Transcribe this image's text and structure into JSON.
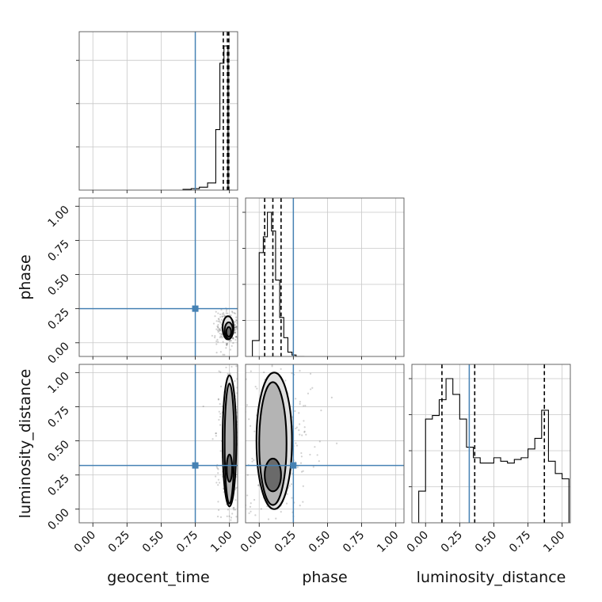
{
  "chart_data": {
    "type": "corner",
    "parameters": [
      "geocent_time",
      "phase",
      "luminosity_distance"
    ],
    "axis_range": [
      -0.1,
      1.06
    ],
    "tick_values": [
      0.0,
      0.25,
      0.5,
      0.75,
      1.0
    ],
    "tick_labels": [
      "0.00",
      "0.25",
      "0.50",
      "0.75",
      "1.00"
    ],
    "grid": true,
    "truths": {
      "geocent_time": 0.75,
      "phase": 0.25,
      "luminosity_distance": 0.32
    },
    "colors": {
      "truth": "#4682b4",
      "hist": "#000000",
      "grid": "#c8c8c8",
      "contour_fill": "#c0c0c0"
    },
    "histograms": [
      {
        "param": "geocent_time",
        "bin_edges": [
          0.66,
          0.72,
          0.78,
          0.84,
          0.9,
          0.93,
          0.96,
          0.99,
          1.02
        ],
        "counts": [
          0.5,
          1,
          2,
          5,
          42,
          88,
          100,
          0
        ],
        "quantiles": [
          0.955,
          0.985,
          0.995
        ]
      },
      {
        "param": "phase",
        "bin_edges": [
          -0.05,
          0.0,
          0.03,
          0.06,
          0.09,
          0.12,
          0.15,
          0.18,
          0.21,
          0.24,
          0.27,
          0.3,
          0.33
        ],
        "counts": [
          11,
          72,
          83,
          100,
          87,
          53,
          27,
          13,
          3,
          1,
          0,
          0
        ],
        "quantiles": [
          0.04,
          0.1,
          0.16
        ]
      },
      {
        "param": "luminosity_distance",
        "bin_edges": [
          -0.05,
          0.0,
          0.05,
          0.1,
          0.15,
          0.2,
          0.25,
          0.3,
          0.35,
          0.4,
          0.45,
          0.5,
          0.55,
          0.6,
          0.65,
          0.7,
          0.75,
          0.8,
          0.85,
          0.9,
          0.95,
          1.0,
          1.05
        ],
        "counts": [
          18,
          59,
          61,
          70,
          82,
          73,
          59,
          43,
          37,
          34,
          34,
          37,
          35,
          34,
          36,
          37,
          42,
          48,
          64,
          35,
          28,
          25
        ],
        "quantiles": [
          0.12,
          0.36,
          0.87
        ]
      }
    ],
    "scatter_panels": [
      {
        "x": "geocent_time",
        "y": "phase",
        "contours": [
          {
            "level": "outer",
            "center": [
              0.99,
              0.11
            ],
            "radii": [
              0.04,
              0.085
            ]
          },
          {
            "level": "mid",
            "center": [
              0.995,
              0.09
            ],
            "radii": [
              0.03,
              0.06
            ]
          },
          {
            "level": "inner",
            "center": [
              0.995,
              0.08
            ],
            "radii": [
              0.018,
              0.035
            ]
          }
        ]
      },
      {
        "x": "geocent_time",
        "y": "luminosity_distance",
        "contours": [
          {
            "level": "outer",
            "center": [
              1.0,
              0.5
            ],
            "radii": [
              0.05,
              0.48
            ]
          },
          {
            "level": "mid",
            "center": [
              1.0,
              0.48
            ],
            "radii": [
              0.035,
              0.44
            ]
          },
          {
            "level": "inner",
            "center": [
              1.0,
              0.3
            ],
            "radii": [
              0.02,
              0.1
            ]
          }
        ]
      },
      {
        "x": "phase",
        "y": "luminosity_distance",
        "contours": [
          {
            "level": "outer",
            "center": [
              0.11,
              0.5
            ],
            "radii": [
              0.13,
              0.5
            ]
          },
          {
            "level": "mid",
            "center": [
              0.1,
              0.48
            ],
            "radii": [
              0.1,
              0.45
            ]
          },
          {
            "level": "inner",
            "center": [
              0.1,
              0.25
            ],
            "radii": [
              0.06,
              0.12
            ]
          }
        ]
      }
    ]
  }
}
